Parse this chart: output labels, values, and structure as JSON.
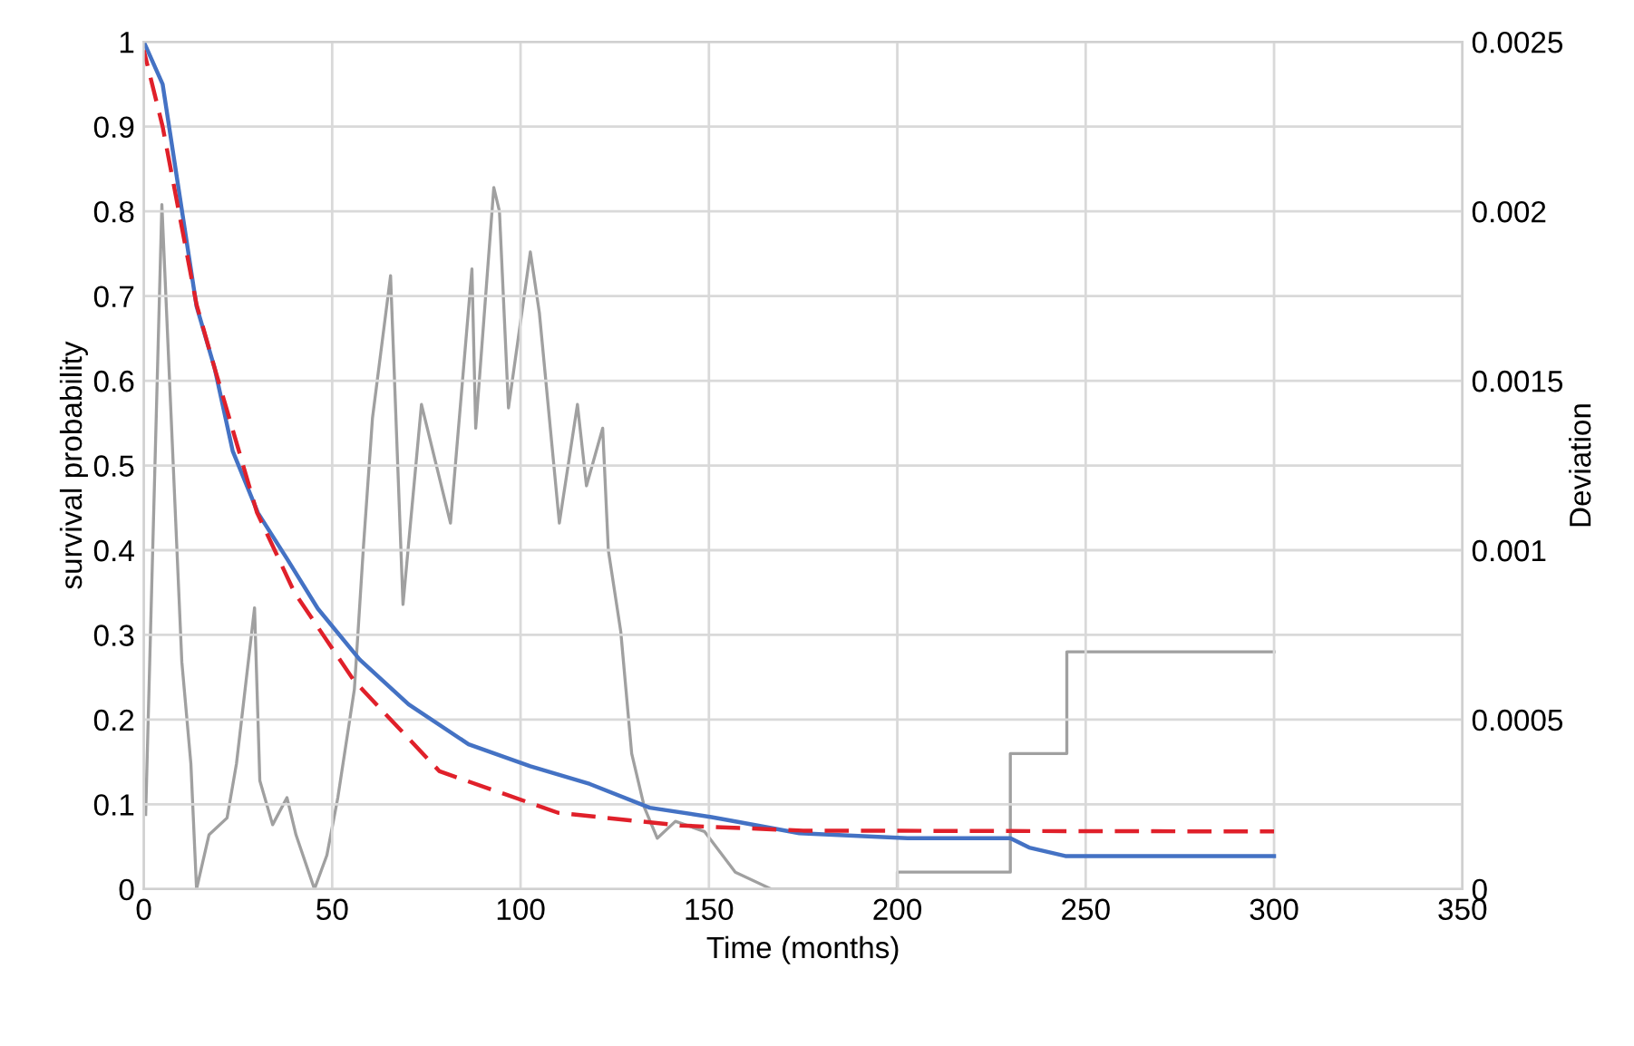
{
  "chart_data": {
    "type": "line",
    "xlabel": "Time (months)",
    "ylabel": "survival probability",
    "y2label": "Deviation",
    "xlim": [
      0,
      350
    ],
    "xticks": [
      0,
      50,
      100,
      150,
      200,
      250,
      300,
      350
    ],
    "ylim": [
      0,
      1
    ],
    "yticks": [
      0,
      0.1,
      0.2,
      0.3,
      0.4,
      0.5,
      0.6,
      0.7,
      0.8,
      0.9,
      1
    ],
    "y2lim": [
      0,
      0.0025
    ],
    "y2ticks": [
      0,
      0.0005,
      0.001,
      0.0015,
      0.002,
      0.0025
    ],
    "grid": true,
    "marker": "none",
    "series": [
      {
        "color": "#4472c4",
        "line_style": "solid",
        "x": [
          0,
          5,
          14,
          18.8,
          23.6,
          30.3,
          38,
          46.2,
          57.3,
          70.3,
          86.2,
          102.6,
          118.4,
          134.3,
          150.7,
          158,
          174,
          202.7,
          230,
          235,
          244.6,
          300
        ],
        "values": [
          1.0,
          0.95,
          0.688,
          0.615,
          0.517,
          0.444,
          0.39,
          0.331,
          0.271,
          0.218,
          0.171,
          0.145,
          0.124,
          0.096,
          0.085,
          0.079,
          0.066,
          0.06,
          0.06,
          0.049,
          0.039,
          0.039
        ]
      },
      {
        "color": "#e0202a",
        "line_style": "dashed",
        "x": [
          0,
          5,
          14,
          18.8,
          30,
          40,
          55.8,
          78.5,
          110,
          142.5,
          175,
          300
        ],
        "values": [
          0.99,
          0.9,
          0.69,
          0.615,
          0.445,
          0.35,
          0.246,
          0.139,
          0.09,
          0.075,
          0.069,
          0.068
        ]
      },
      {
        "color": "#a0a0a0",
        "line_style": "solid",
        "axis": "y2",
        "x": [
          0.5,
          4.8,
          10.1,
          12.5,
          14,
          17.3,
          22.1,
          24.6,
          29.4,
          30.8,
          34.2,
          38,
          40.4,
          45.3,
          48.6,
          51.5,
          55.9,
          58.3,
          60.7,
          65.5,
          68.8,
          73.7,
          81.4,
          87.1,
          88.1,
          92.9,
          94.4,
          96.8,
          102.6,
          105,
          110.3,
          115.1,
          117.5,
          121.8,
          123.3,
          126.6,
          129.5,
          132.9,
          136.3,
          141.1,
          148.8,
          157,
          166.6,
          200,
          200,
          230,
          230,
          245,
          245,
          300
        ],
        "values": [
          0.00022,
          0.00202,
          0.00067,
          0.00037,
          0,
          0.00016,
          0.00021,
          0.00037,
          0.00083,
          0.00032,
          0.00019,
          0.00027,
          0.00016,
          0,
          0.0001,
          0.00027,
          0.00059,
          0.00101,
          0.00139,
          0.00181,
          0.00084,
          0.00143,
          0.00108,
          0.00183,
          0.00136,
          0.00207,
          0.002,
          0.00142,
          0.00188,
          0.0017,
          0.00108,
          0.00143,
          0.00119,
          0.00136,
          0.001,
          0.00076,
          0.0004,
          0.00024,
          0.00015,
          0.0002,
          0.00017,
          5e-05,
          0,
          0,
          5e-05,
          5e-05,
          0.0004,
          0.0004,
          0.0007,
          0.0007
        ]
      }
    ]
  }
}
